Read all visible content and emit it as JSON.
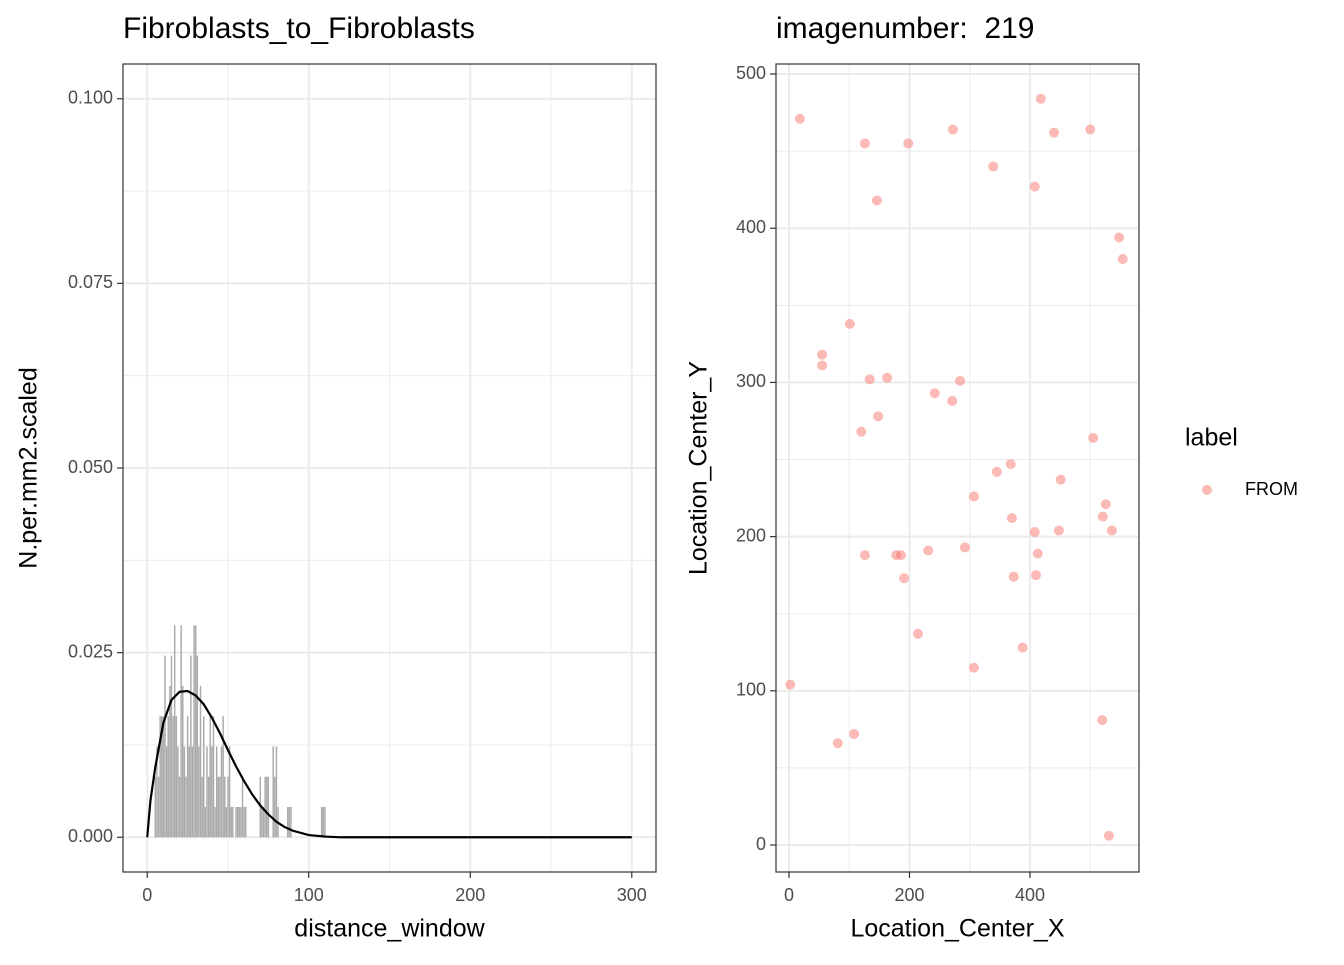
{
  "chart_data": [
    {
      "type": "bar",
      "title": "Fibroblasts_to_Fibroblasts",
      "x_label": "distance_window",
      "y_label": "N.per.mm2.scaled",
      "xlim": [
        -15,
        315
      ],
      "ylim": [
        -0.0047,
        0.1047
      ],
      "xticks": [
        0,
        100,
        200,
        300
      ],
      "minor_xticks": [
        50,
        150,
        250
      ],
      "yticks": [
        {
          "value": 0,
          "label": "0.000"
        },
        {
          "value": 0.025,
          "label": "0.025"
        },
        {
          "value": 0.05,
          "label": "0.050"
        },
        {
          "value": 0.075,
          "label": "0.075"
        },
        {
          "value": 0.1,
          "label": "0.100"
        }
      ],
      "minor_yticks": [
        0.0125,
        0.0375,
        0.0625,
        0.0875
      ],
      "grid": true,
      "series": [
        {
          "type": "bar",
          "color": "#aaaaaa",
          "x": [
            5,
            6,
            7,
            8,
            9,
            10,
            11,
            12,
            13,
            14,
            15,
            16,
            17,
            18,
            19,
            20,
            21,
            22,
            23,
            24,
            25,
            26,
            27,
            28,
            29,
            30,
            31,
            32,
            33,
            34,
            35,
            36,
            37,
            38,
            39,
            40,
            41,
            42,
            43,
            44,
            45,
            46,
            47,
            48,
            49,
            50,
            51,
            52,
            53,
            55,
            56,
            57,
            58,
            59,
            60,
            61,
            70,
            71,
            72,
            73,
            74,
            75,
            78,
            79,
            80,
            81,
            87,
            88,
            89,
            108,
            109,
            110
          ],
          "values": [
            0.0082,
            0.0123,
            0.0082,
            0.0164,
            0.0164,
            0.0164,
            0.0246,
            0.0123,
            0.0164,
            0.0205,
            0.0246,
            0.0164,
            0.0287,
            0.0164,
            0.0123,
            0.0082,
            0.0287,
            0.0205,
            0.0123,
            0.0082,
            0.0164,
            0.0123,
            0.0246,
            0.0123,
            0.0287,
            0.0287,
            0.0246,
            0.0123,
            0.0205,
            0.0082,
            0.0164,
            0.0041,
            0.0123,
            0.0082,
            0.0164,
            0.0123,
            0.0164,
            0.0041,
            0.0123,
            0.0082,
            0.0082,
            0.0123,
            0.0164,
            0.0082,
            0.0041,
            0.0082,
            0.0123,
            0.0041,
            0.0041,
            0.0041,
            0.0041,
            0.0041,
            0.0041,
            0.0082,
            0.0041,
            0.0041,
            0.0082,
            0.0041,
            0.0041,
            0.0082,
            0.0082,
            0.0082,
            0.0123,
            0.0082,
            0.0123,
            0.0041,
            0.0041,
            0.0041,
            0.0041,
            0.0041,
            0.0041,
            0.0041
          ]
        },
        {
          "type": "line",
          "color": "#000000",
          "x": [
            0,
            2,
            5,
            10,
            15,
            20,
            25,
            30,
            35,
            40,
            45,
            50,
            55,
            60,
            65,
            70,
            75,
            80,
            85,
            90,
            100,
            110,
            120,
            150,
            200,
            300
          ],
          "values": [
            0,
            0.005,
            0.0095,
            0.0155,
            0.0186,
            0.0197,
            0.0198,
            0.0192,
            0.018,
            0.0162,
            0.0141,
            0.0118,
            0.0096,
            0.0076,
            0.0058,
            0.0043,
            0.0031,
            0.0021,
            0.0014,
            0.0009,
            0.0003,
            0.0001,
            0,
            0,
            0,
            0
          ]
        }
      ]
    },
    {
      "type": "scatter",
      "title": "imagenumber:  219",
      "x_label": "Location_Center_X",
      "y_label": "Location_Center_Y",
      "xlim": [
        -21.6,
        581
      ],
      "ylim": [
        -17.5,
        506.5
      ],
      "xticks": [
        0,
        200,
        400
      ],
      "minor_xticks": [
        100,
        300,
        500
      ],
      "yticks": [
        0,
        100,
        200,
        300,
        400,
        500
      ],
      "minor_yticks": [
        50,
        150,
        250,
        350,
        450
      ],
      "grid": true,
      "legend_title": "label",
      "legend": "right",
      "series": [
        {
          "name": "FROM",
          "color": "#f8766d",
          "x": [
            18,
            126,
            198,
            272,
            418,
            440,
            500,
            339,
            408,
            146,
            548,
            554,
            101,
            55,
            55,
            134,
            163,
            284,
            242,
            271,
            120,
            148,
            505,
            345,
            368,
            451,
            307,
            370,
            408,
            448,
            526,
            521,
            536,
            126,
            178,
            186,
            231,
            292,
            413,
            191,
            373,
            410,
            214,
            388,
            307,
            2,
            108,
            81,
            520,
            531
          ],
          "values": [
            471,
            455,
            455,
            464,
            484,
            462,
            464,
            440,
            427,
            418,
            394,
            380,
            338,
            318,
            311,
            302,
            303,
            301,
            293,
            288,
            268,
            278,
            264,
            242,
            247,
            237,
            226,
            212,
            203,
            204,
            221,
            213,
            204,
            188,
            188,
            188,
            191,
            193,
            189,
            173,
            174,
            175,
            137,
            128,
            115,
            104,
            72,
            66,
            81,
            6
          ]
        }
      ]
    }
  ]
}
